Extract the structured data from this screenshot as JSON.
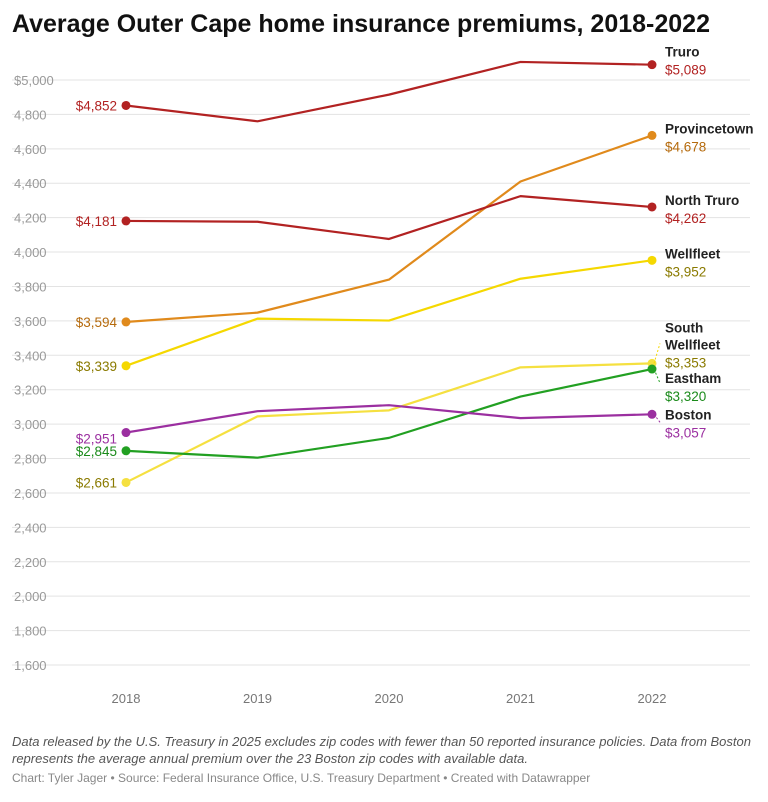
{
  "title": "Average Outer Cape home insurance premiums, 2018-2022",
  "notes": "Data released by the U.S. Treasury in 2025 excludes zip codes with fewer than 50 reported insurance policies. Data from Boston represents the average annual premium over the 23 Boston zip codes with available data.",
  "credit": "Chart: Tyler Jager • Source: Federal Insurance Office, U.S. Treasury Department • Created with Datawrapper",
  "chart_data": {
    "type": "line",
    "title": "Average Outer Cape home insurance premiums, 2018-2022",
    "xlabel": "",
    "ylabel": "",
    "x": [
      "2018",
      "2019",
      "2020",
      "2021",
      "2022"
    ],
    "ylim": [
      1600,
      5000
    ],
    "yticks": [
      "$5,000",
      "4,800",
      "4,600",
      "4,400",
      "4,200",
      "4,000",
      "3,800",
      "3,600",
      "3,400",
      "3,200",
      "3,000",
      "2,800",
      "2,600",
      "2,400",
      "2,200",
      "2,000",
      "1,800",
      "1,600"
    ],
    "ytick_values": [
      5000,
      4800,
      4600,
      4400,
      4200,
      4000,
      3800,
      3600,
      3400,
      3200,
      3000,
      2800,
      2600,
      2400,
      2200,
      2000,
      1800,
      1600
    ],
    "grid": true,
    "series": [
      {
        "name": "Truro",
        "name_lines": [
          "Truro"
        ],
        "values": [
          4852,
          4760,
          4915,
          5105,
          5089
        ],
        "color": "#b22222",
        "start_label": "$4,852",
        "end_label": "$5,089",
        "label_color": "#b22222"
      },
      {
        "name": "Provincetown",
        "name_lines": [
          "Provincetown"
        ],
        "values": [
          3594,
          3648,
          3840,
          4410,
          4678
        ],
        "color": "#e08a1c",
        "start_label": "$3,594",
        "end_label": "$4,678",
        "label_color": "#b56a0c"
      },
      {
        "name": "North Truro",
        "name_lines": [
          "North Truro"
        ],
        "values": [
          4181,
          4176,
          4076,
          4325,
          4262
        ],
        "color": "#b22222",
        "start_label": "$4,181",
        "end_label": "$4,262",
        "label_color": "#b22222"
      },
      {
        "name": "Wellfleet",
        "name_lines": [
          "Wellfleet"
        ],
        "values": [
          3339,
          3613,
          3602,
          3845,
          3952
        ],
        "color": "#f5d800",
        "start_label": "$3,339",
        "end_label": "$3,952",
        "label_color": "#8a7a00"
      },
      {
        "name": "South Wellfleet",
        "name_lines": [
          "South",
          "Wellfleet"
        ],
        "values": [
          2661,
          3045,
          3080,
          3330,
          3353
        ],
        "color": "#f5e040",
        "start_label": "$2,661",
        "end_label": "$3,353",
        "label_color": "#8a7a00"
      },
      {
        "name": "Eastham",
        "name_lines": [
          "Eastham"
        ],
        "values": [
          2845,
          2805,
          2920,
          3160,
          3320
        ],
        "color": "#22a022",
        "start_label": "$2,845",
        "end_label": "$3,320",
        "label_color": "#1a8a1a"
      },
      {
        "name": "Boston",
        "name_lines": [
          "Boston"
        ],
        "values": [
          2951,
          3075,
          3110,
          3035,
          3057
        ],
        "color": "#9b2fa0",
        "start_label": "$2,951",
        "end_label": "$3,057",
        "label_color": "#9b2fa0"
      }
    ]
  }
}
